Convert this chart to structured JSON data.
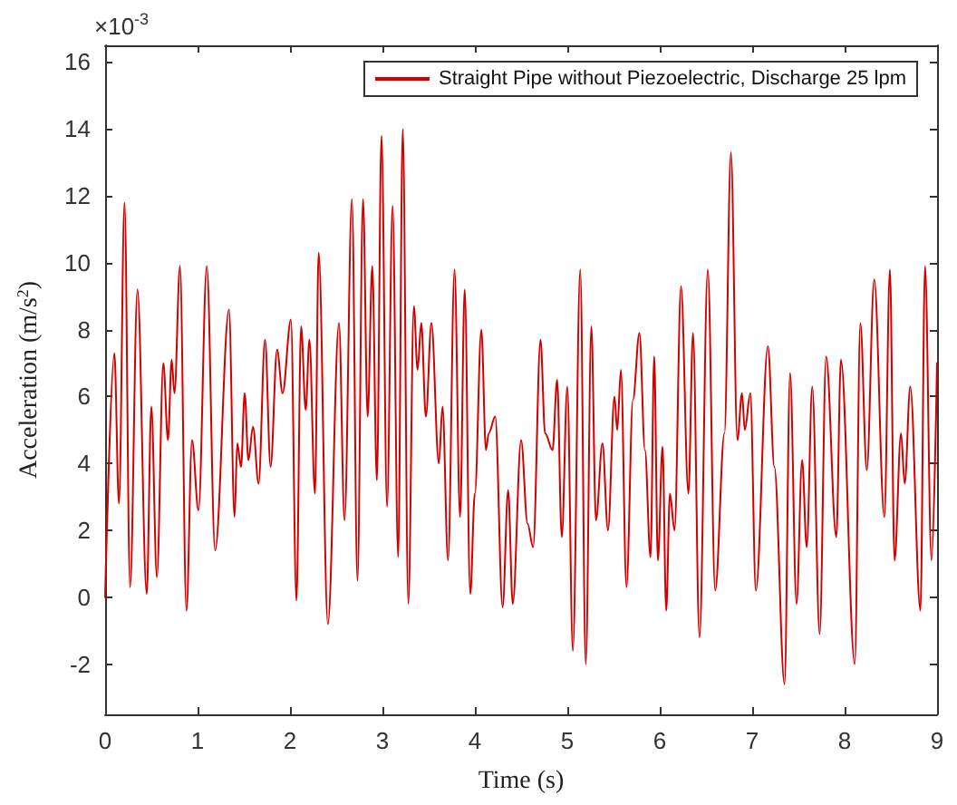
{
  "chart_data": {
    "type": "line",
    "xlabel": "Time (s)",
    "ylabel": "Acceleration (m/s$^{2}$)",
    "annotations": [
      "×10$^{-3}$"
    ],
    "xlim": [
      0,
      9
    ],
    "xticks": [
      0,
      1,
      2,
      3,
      4,
      5,
      6,
      7,
      8,
      9
    ],
    "ylim": [
      -3.5,
      16.5
    ],
    "yticks": [
      -2,
      0,
      2,
      4,
      6,
      8,
      10,
      12,
      14,
      16
    ],
    "grid": false,
    "legend": "top right",
    "marker": "none",
    "line_style": "solid",
    "series": [
      {
        "name": "Straight Pipe without Piezoelectric, Discharge 25 lpm",
        "color": "#d40000",
        "x": [
          0,
          0.1,
          0.15,
          0.21,
          0.27,
          0.35,
          0.45,
          0.5,
          0.56,
          0.63,
          0.68,
          0.72,
          0.75,
          0.81,
          0.88,
          0.94,
          1.01,
          1.1,
          1.19,
          1.34,
          1.4,
          1.43,
          1.47,
          1.51,
          1.55,
          1.6,
          1.66,
          1.73,
          1.79,
          1.86,
          1.92,
          2.01,
          2.07,
          2.12,
          2.17,
          2.21,
          2.27,
          2.31,
          2.41,
          2.53,
          2.59,
          2.67,
          2.73,
          2.79,
          2.84,
          2.89,
          2.94,
          2.99,
          3.05,
          3.11,
          3.17,
          3.22,
          3.28,
          3.34,
          3.38,
          3.42,
          3.47,
          3.53,
          3.61,
          3.65,
          3.71,
          3.78,
          3.84,
          3.89,
          3.95,
          4.0,
          4.07,
          4.12,
          4.15,
          4.22,
          4.3,
          4.36,
          4.41,
          4.5,
          4.57,
          4.63,
          4.71,
          4.76,
          4.84,
          4.89,
          4.94,
          5.0,
          5.06,
          5.14,
          5.2,
          5.26,
          5.31,
          5.38,
          5.44,
          5.51,
          5.54,
          5.58,
          5.64,
          5.71,
          5.78,
          5.84,
          5.9,
          5.94,
          5.98,
          6.03,
          6.07,
          6.11,
          6.16,
          6.23,
          6.31,
          6.36,
          6.43,
          6.52,
          6.6,
          6.7,
          6.77,
          6.84,
          6.89,
          6.92,
          6.98,
          7.04,
          7.17,
          7.24,
          7.35,
          7.41,
          7.48,
          7.54,
          7.59,
          7.65,
          7.73,
          7.8,
          7.91,
          7.96,
          8.11,
          8.17,
          8.24,
          8.32,
          8.43,
          8.49,
          8.54,
          8.61,
          8.65,
          8.71,
          8.82,
          8.87,
          8.94,
          9.0
        ],
        "values": [
          0.0,
          7.3,
          2.8,
          11.8,
          0.3,
          9.2,
          0.1,
          5.7,
          0.6,
          7.0,
          4.7,
          7.1,
          6.1,
          9.9,
          -0.4,
          4.7,
          2.6,
          9.9,
          1.4,
          8.6,
          2.4,
          4.6,
          3.9,
          6.1,
          4.1,
          5.1,
          3.4,
          7.7,
          3.9,
          7.4,
          6.1,
          8.3,
          -0.1,
          8.1,
          5.6,
          7.7,
          3.1,
          10.3,
          -0.8,
          8.2,
          2.3,
          11.9,
          0.5,
          11.9,
          5.4,
          9.9,
          3.5,
          13.8,
          2.7,
          11.7,
          1.2,
          14.0,
          -0.2,
          8.7,
          6.8,
          8.2,
          5.4,
          8.2,
          4.0,
          5.7,
          1.1,
          9.8,
          2.4,
          9.2,
          0.1,
          3.1,
          8.0,
          4.4,
          4.9,
          5.4,
          -0.3,
          3.2,
          -0.2,
          4.7,
          2.2,
          1.5,
          7.7,
          4.9,
          4.4,
          6.5,
          1.8,
          6.3,
          -1.6,
          9.8,
          -2.0,
          8.1,
          2.3,
          4.6,
          2.0,
          6.0,
          5.0,
          6.8,
          0.3,
          5.9,
          7.9,
          4.4,
          1.2,
          7.2,
          1.1,
          4.5,
          -0.4,
          3.1,
          2.0,
          9.3,
          3.1,
          7.9,
          -1.2,
          9.8,
          0.2,
          4.9,
          13.3,
          4.7,
          6.1,
          5.0,
          6.1,
          0.2,
          7.5,
          3.9,
          -2.6,
          6.7,
          -0.2,
          4.1,
          1.5,
          6.3,
          -1.1,
          7.2,
          1.8,
          7.1,
          -2.0,
          8.2,
          3.8,
          9.5,
          2.4,
          9.8,
          1.1,
          4.9,
          3.4,
          6.3,
          -0.4,
          9.9,
          1.1,
          7.0
        ]
      }
    ]
  }
}
